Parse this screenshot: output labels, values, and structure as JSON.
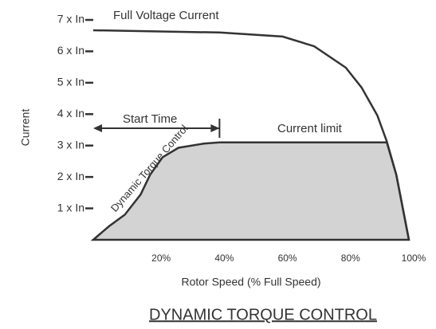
{
  "chart_data": {
    "type": "line",
    "title": "DYNAMIC TORQUE CONTROL",
    "xlabel": "Rotor Speed (% Full Speed)",
    "ylabel": "Current",
    "xlim": [
      0,
      100
    ],
    "ylim": [
      0,
      7
    ],
    "xticks": [
      {
        "value": 20,
        "label": "20%"
      },
      {
        "value": 40,
        "label": "40%"
      },
      {
        "value": 60,
        "label": "60%"
      },
      {
        "value": 80,
        "label": "80%"
      },
      {
        "value": 100,
        "label": "100%"
      }
    ],
    "yticks": [
      {
        "value": 1,
        "label": "1 x In"
      },
      {
        "value": 2,
        "label": "2 x In"
      },
      {
        "value": 3,
        "label": "3 x In"
      },
      {
        "value": 4,
        "label": "4 x In"
      },
      {
        "value": 5,
        "label": "5 x In"
      },
      {
        "value": 6,
        "label": "6 x In"
      },
      {
        "value": 7,
        "label": "7 x In"
      }
    ],
    "series": [
      {
        "name": "Full Voltage Current",
        "color": "#333333",
        "x": [
          0,
          40,
          60,
          70,
          80,
          85,
          90,
          93,
          96,
          100
        ],
        "values": [
          6.67,
          6.6,
          6.47,
          6.16,
          5.48,
          4.85,
          3.96,
          3.13,
          2.07,
          0
        ]
      },
      {
        "name": "Current limit",
        "color": "#d3d3d3",
        "x": [
          0,
          5,
          10,
          15,
          18,
          22,
          27,
          35,
          40,
          93,
          96,
          100
        ],
        "values": [
          0,
          0.43,
          0.8,
          1.44,
          2.07,
          2.63,
          2.93,
          3.06,
          3.1,
          3.1,
          2.07,
          0
        ]
      }
    ],
    "annotations": {
      "curve": "Dynamic Torque Control",
      "start_time": {
        "label": "Start Time",
        "x": [
          0,
          40
        ]
      }
    }
  }
}
